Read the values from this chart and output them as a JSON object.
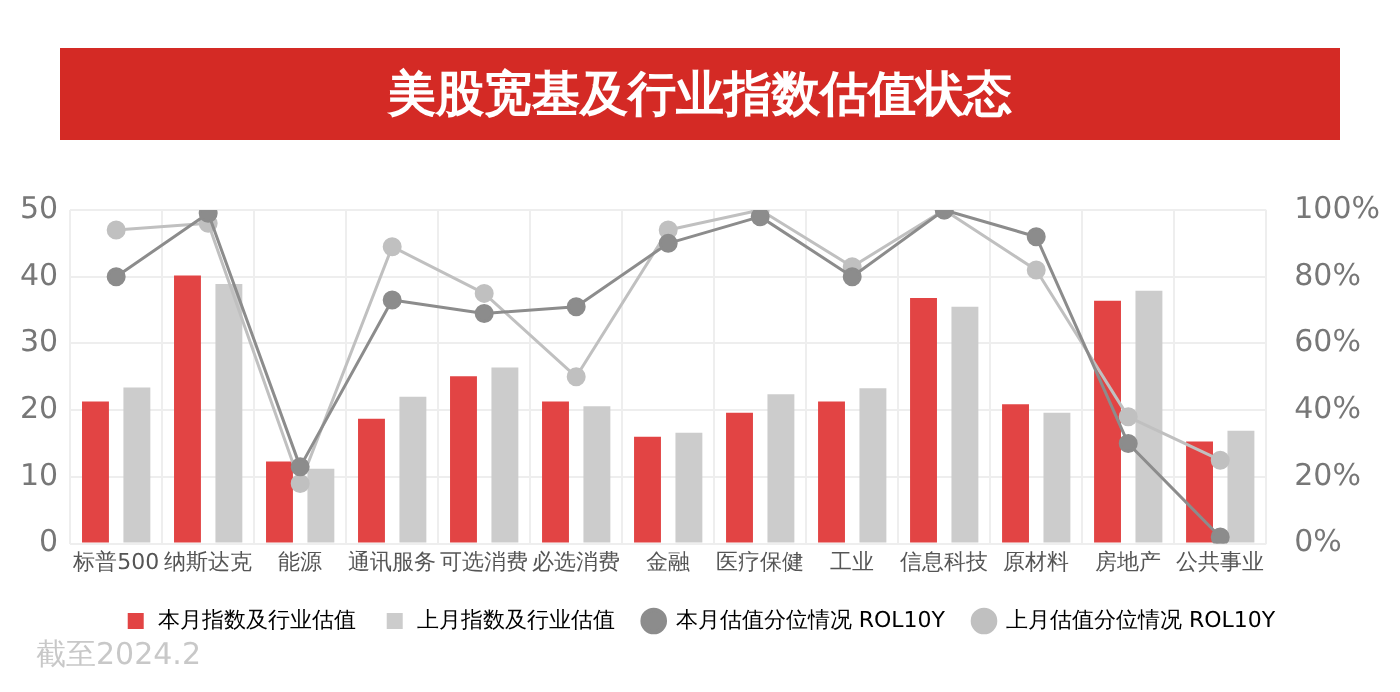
{
  "chart_data": {
    "type": "bar",
    "title": "美股宽基及行业指数估值状态",
    "categories": [
      "标普500",
      "纳斯达克",
      "能源",
      "通讯服务",
      "可选消费",
      "必选消费",
      "金融",
      "医疗保健",
      "工业",
      "信息科技",
      "原材料",
      "房地产",
      "公共事业"
    ],
    "series": [
      {
        "name": "本月指数及行业估值",
        "color": "#e24444",
        "values": [
          21.3,
          40.2,
          12.3,
          18.7,
          25.1,
          21.3,
          16.0,
          19.6,
          21.3,
          36.8,
          20.9,
          36.4,
          15.3
        ]
      },
      {
        "name": "上月指数及行业估值",
        "color": "#cccccc",
        "values": [
          23.4,
          38.9,
          11.2,
          22.0,
          26.4,
          20.6,
          16.6,
          22.4,
          23.3,
          35.5,
          19.6,
          37.9,
          16.9
        ]
      },
      {
        "name": "本月估值分位情况 ROL10Y",
        "type": "line",
        "axis": "y2",
        "color": "#8c8c8c",
        "values": [
          80,
          99,
          23,
          73,
          69,
          71,
          90,
          98,
          80,
          100,
          92,
          30,
          2
        ]
      },
      {
        "name": "上月估值分位情况 ROL10Y",
        "type": "line",
        "axis": "y2",
        "color": "#c0c0c0",
        "values": [
          94,
          96,
          18,
          89,
          75,
          50,
          94,
          100,
          83,
          100,
          82,
          38,
          25
        ]
      }
    ],
    "ylim": [
      0,
      50
    ],
    "yticks": [
      0,
      10,
      20,
      30,
      40,
      50
    ],
    "y2lim": [
      0,
      100
    ],
    "y2ticks": [
      {
        "value": 0,
        "label": "0%"
      },
      {
        "value": 20,
        "label": "20%"
      },
      {
        "value": 40,
        "label": "40%"
      },
      {
        "value": 60,
        "label": "60%"
      },
      {
        "value": 80,
        "label": "80%"
      },
      {
        "value": 100,
        "label": "100%"
      }
    ],
    "grid": true,
    "legend": "bottom",
    "marker": "circle",
    "line_style": "solid",
    "annotations": [
      "截至2024.2"
    ]
  }
}
